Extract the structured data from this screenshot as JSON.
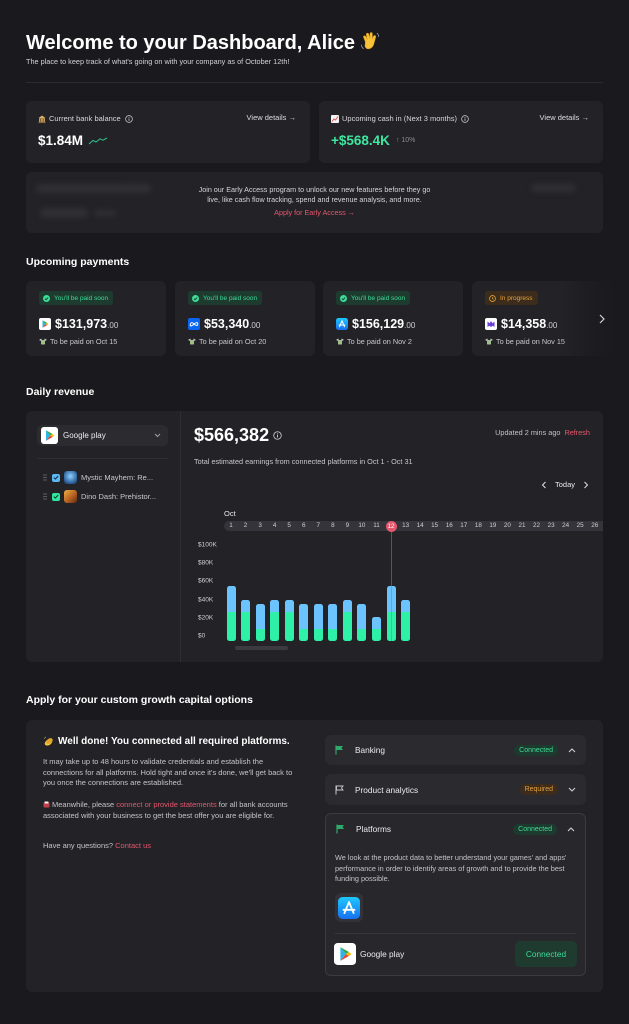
{
  "header": {
    "title": "Welcome to your Dashboard, Alice",
    "title_icon": "waving-hand-icon",
    "subtitle": "The place to keep track of what's going on with your company as of October 12th!"
  },
  "stats": [
    {
      "icon": "bank-icon",
      "label": "Current bank balance",
      "value": "$1.84M",
      "trend_icon": "sparkline-up-icon",
      "link": "View details →"
    },
    {
      "icon": "chart-increasing-icon",
      "label": "Upcoming cash in (Next 3 months)",
      "value": "+$568.4K",
      "change": "↑ 10%",
      "link": "View details →"
    }
  ],
  "early_access": {
    "text": "Join our Early Access program to unlock our new features before they go live, like cash flow tracking, spend and revenue analysis, and more.",
    "cta": "Apply for Early Access →"
  },
  "payments": {
    "title": "Upcoming payments",
    "items": [
      {
        "status": "You'll be paid soon",
        "status_type": "paid-soon",
        "platform_icon": "google-play-icon",
        "amount": "$131,973",
        "cents": ".00",
        "due": "To be paid on Oct 15"
      },
      {
        "status": "You'll be paid soon",
        "status_type": "paid-soon",
        "platform_icon": "meta-icon",
        "amount": "$53,340",
        "cents": ".00",
        "due": "To be paid on Oct 20"
      },
      {
        "status": "You'll be paid soon",
        "status_type": "paid-soon",
        "platform_icon": "app-store-icon",
        "amount": "$156,129",
        "cents": ".00",
        "due": "To be paid on Nov 2"
      },
      {
        "status": "In progress",
        "status_type": "in-progress",
        "platform_icon": "purple-m-icon",
        "amount": "$14,358",
        "cents": ".00",
        "due": "To be paid on Nov 15"
      }
    ]
  },
  "revenue": {
    "title": "Daily revenue",
    "platform_select": "Google play",
    "apps": [
      {
        "name": "Mystic Mayhem: Re...",
        "checked": true,
        "color": "#5ab8f5"
      },
      {
        "name": "Dino Dash: Prehistor...",
        "checked": true,
        "color": "#2ee6a0"
      }
    ],
    "total": "$566,382",
    "updated": "Updated 2 mins ago",
    "refresh": "Refresh",
    "description": "Total estimated earnings from connected platforms in Oct 1 - Oct 31",
    "nav_label": "Today",
    "month": "Oct"
  },
  "growth": {
    "title": "Apply for your custom growth capital options",
    "card_title": "Well done! You connected all required platforms.",
    "para1": "It may take up to 48 hours to validate credentials and establish the connections for all platforms. Hold tight and once it's done, we'll get back to you once the connections are established.",
    "para2_pre": "Meanwhile, please ",
    "para2_link": "connect or provide statements",
    "para2_post": " for all bank accounts associated with your business to get the best offer you are eligible for.",
    "para3_pre": "Have any questions? ",
    "para3_link": "Contact us",
    "sections": [
      {
        "name": "Banking",
        "status": "Connected",
        "expanded": false,
        "chevron": "up"
      },
      {
        "name": "Product analytics",
        "status": "Required",
        "expanded": false,
        "chevron": "down"
      },
      {
        "name": "Platforms",
        "status": "Connected",
        "expanded": true,
        "chevron": "up",
        "body": "We look at the product data to better understand your games' and apps' performance in order to identify areas of growth and to provide the best funding possible.",
        "platform_row": {
          "name": "Google play",
          "action": "Connected"
        }
      }
    ]
  },
  "colors": {
    "background": "#1a1a1e",
    "card": "#232327",
    "accent_red": "#e5566e",
    "positive_green": "#3ee6a0",
    "status_green": "#3ddc97",
    "status_orange": "#e8a33d",
    "bar_green": "#2ef0a6",
    "bar_blue": "#6cc4ff"
  },
  "chart_data": {
    "type": "bar",
    "stacked": true,
    "title": "Daily revenue",
    "xlabel": "Oct",
    "ylabel": "",
    "x_ticks": [
      "1",
      "2",
      "3",
      "4",
      "5",
      "6",
      "7",
      "8",
      "9",
      "10",
      "11",
      "12",
      "13",
      "14",
      "15",
      "16",
      "17",
      "18",
      "19",
      "20",
      "21",
      "22",
      "23",
      "24",
      "25",
      "26"
    ],
    "categories": [
      "1",
      "2",
      "3",
      "4",
      "5",
      "6",
      "7",
      "8",
      "9",
      "10",
      "11",
      "12",
      "13"
    ],
    "series": [
      {
        "name": "Dino Dash: Prehistor...",
        "color": "#2ef0a6",
        "values": [
          30,
          30,
          12,
          30,
          30,
          12,
          12,
          12,
          30,
          12,
          12,
          30,
          30
        ]
      },
      {
        "name": "Mystic Mayhem: Re...",
        "color": "#6cc4ff",
        "values": [
          26,
          12,
          26,
          12,
          12,
          26,
          26,
          26,
          12,
          26,
          12,
          26,
          12
        ]
      }
    ],
    "y_ticks": [
      "$100K",
      "$80K",
      "$60K",
      "$40K",
      "$20K",
      "$0"
    ],
    "y_unit": "thousand USD",
    "ylim": [
      0,
      100
    ],
    "highlight": "12",
    "grid": false
  }
}
